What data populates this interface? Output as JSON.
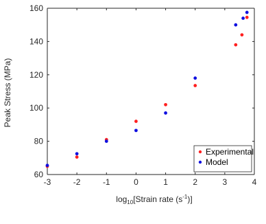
{
  "chart_data": {
    "type": "scatter",
    "xlabel": {
      "prefix": "log",
      "sub": "10",
      "main": "[Strain rate (s",
      "sup": "-1",
      "suffix": ")]"
    },
    "ylabel": "Peak Stress (MPa)",
    "xlim": [
      -3,
      4
    ],
    "ylim": [
      60,
      160
    ],
    "xticks": [
      -3,
      -2,
      -1,
      0,
      1,
      2,
      3,
      4
    ],
    "yticks": [
      60,
      80,
      100,
      120,
      140,
      160
    ],
    "grid": false,
    "legend_position": "bottom-right",
    "series": [
      {
        "name": "Experimental",
        "color": "#ff2020",
        "points": [
          {
            "x": -3,
            "y": 65
          },
          {
            "x": -2,
            "y": 70.5
          },
          {
            "x": -1,
            "y": 81
          },
          {
            "x": 0,
            "y": 92
          },
          {
            "x": 1,
            "y": 102
          },
          {
            "x": 2,
            "y": 113.5
          },
          {
            "x": 3.37,
            "y": 138
          },
          {
            "x": 3.58,
            "y": 144
          },
          {
            "x": 3.75,
            "y": 154.5
          }
        ]
      },
      {
        "name": "Model",
        "color": "#1010e0",
        "points": [
          {
            "x": -3,
            "y": 65.5
          },
          {
            "x": -2,
            "y": 72.5
          },
          {
            "x": -1,
            "y": 80
          },
          {
            "x": 0,
            "y": 86.5
          },
          {
            "x": 1,
            "y": 97
          },
          {
            "x": 2,
            "y": 118
          },
          {
            "x": 3.37,
            "y": 150
          },
          {
            "x": 3.62,
            "y": 154
          },
          {
            "x": 3.75,
            "y": 157.5
          }
        ]
      }
    ]
  }
}
